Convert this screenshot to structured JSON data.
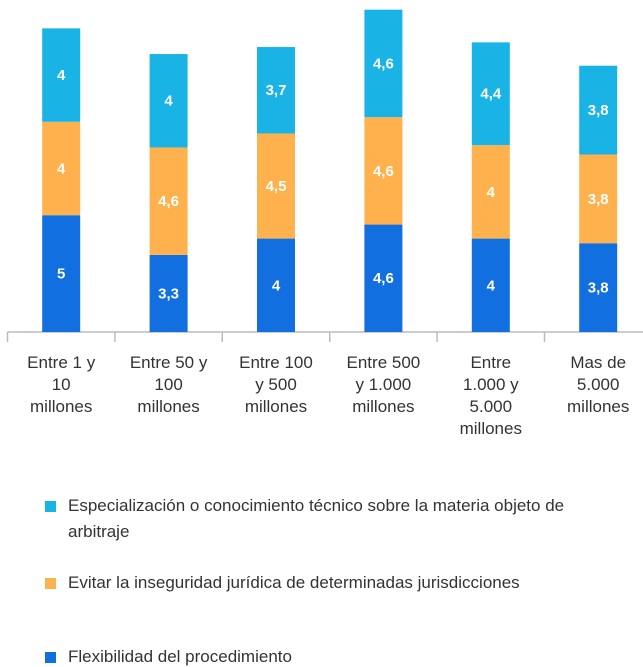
{
  "chart_data": {
    "type": "stacked_bar",
    "categories": [
      "Entre 1 y 10 millones",
      "Entre 50 y 100 millones",
      "Entre 100 y 500 millones",
      "Entre 500 y 1.000 millones",
      "Entre 1.000 y 5.000 millones",
      "Mas de 5.000 millones"
    ],
    "series": [
      {
        "name": "Especialización o conocimiento técnico sobre la materia objeto de arbitraje",
        "color": "#1ab3e6",
        "values": [
          4,
          4,
          3.7,
          4.6,
          4.4,
          3.8
        ],
        "value_labels": [
          "4",
          "4",
          "3,7",
          "4,6",
          "4,4",
          "3,8"
        ]
      },
      {
        "name": "Evitar la inseguridad jurídica de determinadas jurisdicciones",
        "color": "#ffb14e",
        "values": [
          4,
          4.6,
          4.5,
          4.6,
          4,
          3.8
        ],
        "value_labels": [
          "4",
          "4,6",
          "4,5",
          "4,6",
          "4",
          "3,8"
        ]
      },
      {
        "name": "Flexibilidad del procedimiento",
        "color": "#116fe0",
        "values": [
          5,
          3.3,
          4,
          4.6,
          4,
          3.8
        ],
        "value_labels": [
          "5",
          "3,3",
          "4",
          "4,6",
          "4",
          "3,8"
        ]
      }
    ],
    "ylim": [
      0,
      14
    ]
  }
}
